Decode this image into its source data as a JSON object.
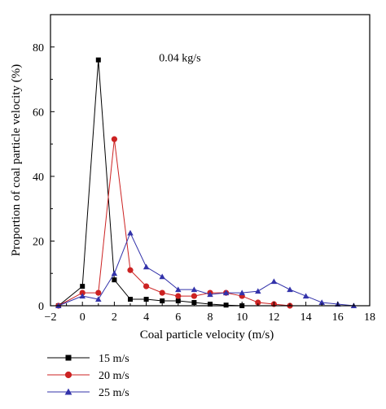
{
  "chart_data": {
    "type": "line",
    "annotation": "0.04 kg/s",
    "xlabel": "Coal particle velocity (m/s)",
    "ylabel": "Proportion of coal particle velocity (%)",
    "xlim": [
      -2,
      18
    ],
    "ylim": [
      0,
      90
    ],
    "x_ticks": [
      "−2",
      "0",
      "2",
      "4",
      "6",
      "8",
      "10",
      "12",
      "14",
      "16",
      "18"
    ],
    "y_ticks": [
      "0",
      "20",
      "40",
      "60",
      "80"
    ],
    "x_tick_values": [
      -2,
      0,
      2,
      4,
      6,
      8,
      10,
      12,
      14,
      16,
      18
    ],
    "y_tick_values": [
      0,
      20,
      40,
      60,
      80
    ],
    "grid": false,
    "legend_position": "bottom-left",
    "series": [
      {
        "name": "15 m/s",
        "color": "#000000",
        "marker": "square",
        "x": [
          -1.5,
          0,
          1,
          2,
          3,
          4,
          5,
          6,
          7,
          8,
          9,
          10
        ],
        "y": [
          0,
          6,
          76,
          8,
          2,
          2,
          1.5,
          1.5,
          1,
          0.5,
          0.2,
          0
        ]
      },
      {
        "name": "20 m/s",
        "color": "#cc2222",
        "marker": "circle",
        "x": [
          -1.5,
          0,
          1,
          2,
          3,
          4,
          5,
          6,
          7,
          8,
          9,
          10,
          11,
          12,
          13
        ],
        "y": [
          0,
          4,
          4,
          51.5,
          11,
          6,
          4,
          3,
          3,
          4,
          4,
          3,
          1,
          0.5,
          0
        ]
      },
      {
        "name": "25 m/s",
        "color": "#3333aa",
        "marker": "triangle",
        "x": [
          -1.5,
          0,
          1,
          2,
          3,
          4,
          5,
          6,
          7,
          8,
          9,
          10,
          11,
          12,
          13,
          14,
          15,
          16,
          17
        ],
        "y": [
          0,
          3,
          2,
          10,
          22.5,
          12,
          9,
          5,
          5,
          3.5,
          4,
          4,
          4.5,
          7.5,
          5,
          3,
          1,
          0.5,
          0
        ]
      }
    ]
  }
}
